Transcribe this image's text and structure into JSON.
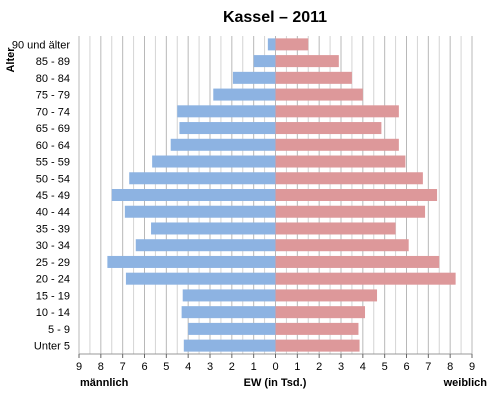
{
  "chart_data": {
    "type": "bar",
    "orientation": "horizontal-butterfly",
    "title": "Kassel – 2011",
    "ylabel": "Alter",
    "xlabel": "EW (in Tsd.)",
    "left_label": "männlich",
    "right_label": "weiblich",
    "xlim": [
      -9,
      9
    ],
    "grid": true,
    "x_ticks": [
      "9",
      "8",
      "7",
      "6",
      "5",
      "4",
      "3",
      "2",
      "1",
      "0",
      "1",
      "2",
      "3",
      "4",
      "5",
      "6",
      "7",
      "8",
      "9"
    ],
    "categories": [
      "90 und älter",
      "85 - 89",
      "80 - 84",
      "75 - 79",
      "70 - 74",
      "65 - 69",
      "60 - 64",
      "55 - 59",
      "50 - 54",
      "45 - 49",
      "40 - 44",
      "35 - 39",
      "30 - 34",
      "25 - 29",
      "20 - 24",
      "15 - 19",
      "10 - 14",
      "5 - 9",
      "Unter 5"
    ],
    "series": [
      {
        "name": "männlich",
        "color": "#8db3e2",
        "values": [
          0.35,
          1.0,
          1.95,
          2.85,
          4.5,
          4.4,
          4.8,
          5.65,
          6.7,
          7.5,
          6.9,
          5.7,
          6.4,
          7.7,
          6.85,
          4.25,
          4.3,
          4.0,
          4.2
        ]
      },
      {
        "name": "weiblich",
        "color": "#dd989a",
        "values": [
          1.5,
          2.9,
          3.5,
          4.0,
          5.65,
          4.85,
          5.65,
          5.95,
          6.75,
          7.4,
          6.85,
          5.5,
          6.1,
          7.5,
          8.25,
          4.65,
          4.1,
          3.8,
          3.85
        ]
      }
    ]
  }
}
